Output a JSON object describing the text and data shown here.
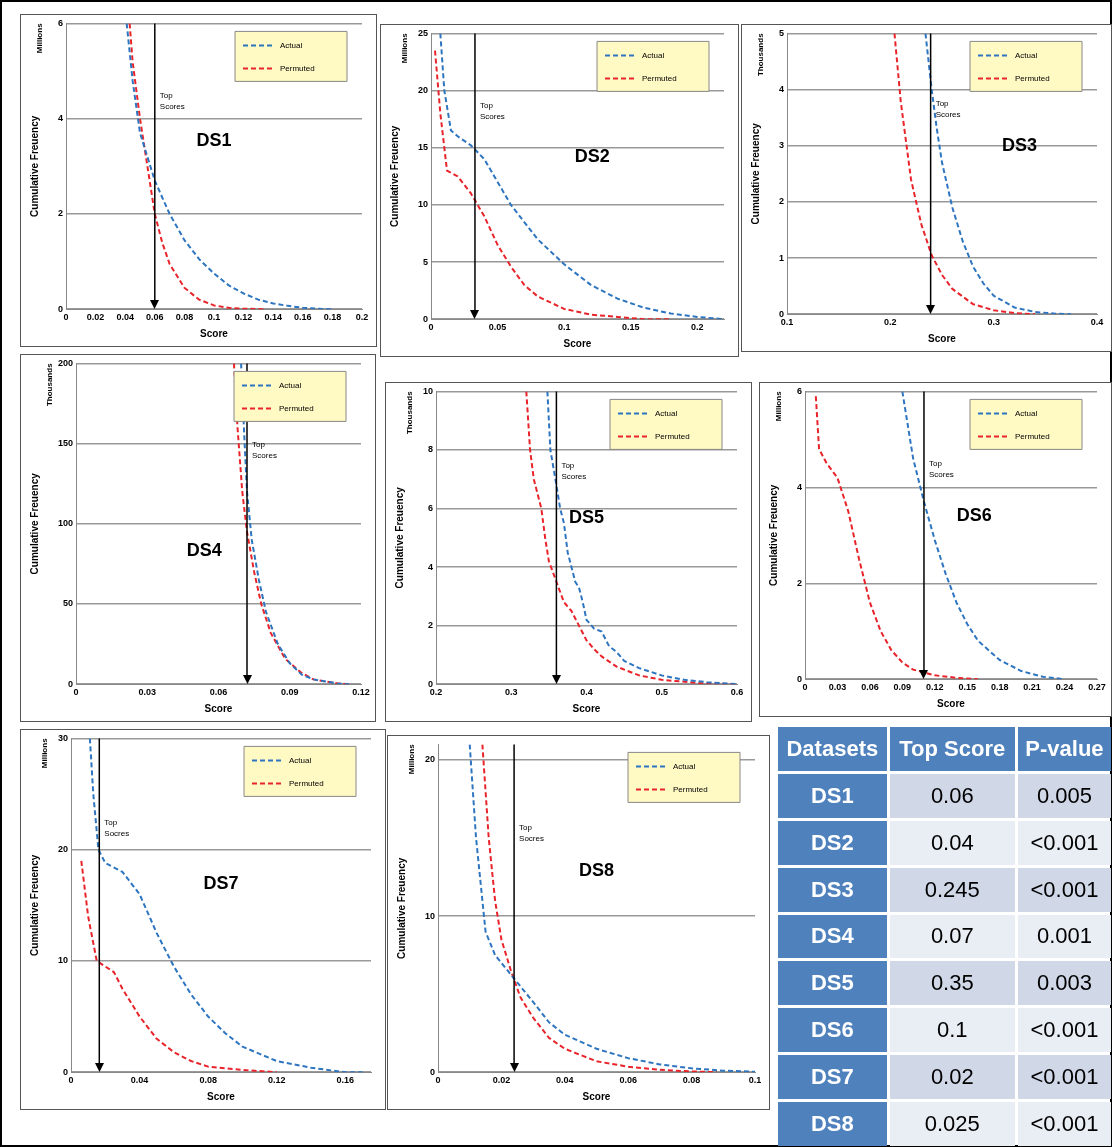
{
  "chart_data": [
    {
      "type": "line",
      "title": "DS1",
      "ylabel": "Cumulative Freuency",
      "xlabel": "Score",
      "annotations": [
        "Millions"
      ],
      "xlim": [
        0,
        0.2
      ],
      "xticks": [
        0,
        0.02,
        0.04,
        0.06,
        0.08,
        0.1,
        0.12,
        0.14,
        0.16,
        0.18,
        0.2
      ],
      "ylim": [
        0,
        6
      ],
      "yticks": [
        0,
        2,
        4,
        6
      ],
      "grid": "y",
      "legend": "top right",
      "line_style": "dashed",
      "marker": "none",
      "ref_lines": [
        {
          "axis": "x",
          "value": 0.06,
          "label": "Top Scores"
        }
      ],
      "series": [
        {
          "name": "Actual",
          "color": "#2e75c0",
          "x": [
            0.041,
            0.045,
            0.05,
            0.055,
            0.06,
            0.07,
            0.08,
            0.09,
            0.1,
            0.11,
            0.12,
            0.13,
            0.14,
            0.15,
            0.16,
            0.17,
            0.18
          ],
          "values": [
            6,
            4.8,
            3.7,
            3.2,
            2.7,
            2,
            1.45,
            1.05,
            0.75,
            0.5,
            0.33,
            0.2,
            0.12,
            0.07,
            0.03,
            0.01,
            0
          ]
        },
        {
          "name": "Permuted",
          "color": "#e8242a",
          "x": [
            0.043,
            0.045,
            0.05,
            0.055,
            0.06,
            0.065,
            0.07,
            0.08,
            0.09,
            0.1,
            0.11,
            0.12,
            0.135
          ],
          "values": [
            6,
            5.2,
            4,
            3,
            2,
            1.4,
            0.95,
            0.45,
            0.2,
            0.08,
            0.03,
            0.01,
            0
          ]
        }
      ]
    },
    {
      "type": "line",
      "title": "DS2",
      "ylabel": "Cumulative Freuency",
      "xlabel": "Score",
      "annotations": [
        "Millions"
      ],
      "xlim": [
        0,
        0.22
      ],
      "xticks": [
        0,
        0.05,
        0.1,
        0.15,
        0.2
      ],
      "ylim": [
        0,
        25
      ],
      "yticks": [
        0,
        5,
        10,
        15,
        20,
        25
      ],
      "grid": "y",
      "legend": "top right",
      "line_style": "dashed",
      "marker": "none",
      "ref_lines": [
        {
          "axis": "x",
          "value": 0.033,
          "label": "Top Scores"
        }
      ],
      "series": [
        {
          "name": "Actual",
          "color": "#2e75c0",
          "x": [
            0.007,
            0.01,
            0.015,
            0.02,
            0.03,
            0.04,
            0.05,
            0.06,
            0.08,
            0.1,
            0.12,
            0.14,
            0.16,
            0.18,
            0.2,
            0.22
          ],
          "values": [
            25,
            20,
            16.5,
            16,
            15.2,
            14,
            12,
            10,
            7,
            4.8,
            3,
            1.8,
            1,
            0.5,
            0.2,
            0
          ]
        },
        {
          "name": "Permuted",
          "color": "#e8242a",
          "x": [
            0.003,
            0.007,
            0.012,
            0.02,
            0.03,
            0.04,
            0.05,
            0.06,
            0.07,
            0.08,
            0.1,
            0.12,
            0.14,
            0.16,
            0.18
          ],
          "values": [
            23.5,
            18,
            13,
            12.5,
            11,
            9,
            6.5,
            4.6,
            3,
            2,
            0.9,
            0.4,
            0.2,
            0,
            0
          ]
        }
      ]
    },
    {
      "type": "line",
      "title": "DS3",
      "ylabel": "Cumulative Freuency",
      "xlabel": "Score",
      "annotations": [
        "Thousands"
      ],
      "xlim": [
        0.1,
        0.4
      ],
      "xticks": [
        0.1,
        0.2,
        0.3,
        0.4
      ],
      "ylim": [
        0,
        5
      ],
      "yticks": [
        0,
        1,
        2,
        3,
        4,
        5
      ],
      "grid": "y",
      "legend": "top right",
      "line_style": "dashed",
      "marker": "none",
      "ref_lines": [
        {
          "axis": "x",
          "value": 0.239,
          "label": "Top Scores"
        }
      ],
      "series": [
        {
          "name": "Actual",
          "color": "#2e75c0",
          "x": [
            0.234,
            0.24,
            0.245,
            0.25,
            0.26,
            0.27,
            0.28,
            0.29,
            0.3,
            0.32,
            0.34,
            0.36,
            0.375
          ],
          "values": [
            5,
            4,
            3.3,
            2.7,
            1.9,
            1.3,
            0.85,
            0.55,
            0.33,
            0.12,
            0.04,
            0.01,
            0
          ]
        },
        {
          "name": "Permuted",
          "color": "#e8242a",
          "x": [
            0.204,
            0.21,
            0.22,
            0.23,
            0.24,
            0.25,
            0.26,
            0.28,
            0.3,
            0.32,
            0.34
          ],
          "values": [
            5,
            3.8,
            2.4,
            1.6,
            1.05,
            0.7,
            0.45,
            0.18,
            0.07,
            0.02,
            0
          ]
        }
      ]
    },
    {
      "type": "line",
      "title": "DS4",
      "ylabel": "Cumulative Freuency",
      "xlabel": "Score",
      "annotations": [
        "Thousands"
      ],
      "xlim": [
        0,
        0.12
      ],
      "xticks": [
        0,
        0.03,
        0.06,
        0.09,
        0.12
      ],
      "ylim": [
        0,
        200
      ],
      "yticks": [
        0,
        50,
        100,
        150,
        200
      ],
      "grid": "y",
      "legend": "top right",
      "line_style": "dashed",
      "marker": "none",
      "ref_lines": [
        {
          "axis": "x",
          "value": 0.072,
          "label": "Top Scores"
        }
      ],
      "series": [
        {
          "name": "Actual",
          "color": "#2e75c0",
          "x": [
            0.0695,
            0.071,
            0.072,
            0.074,
            0.077,
            0.08,
            0.085,
            0.09,
            0.095,
            0.1,
            0.11,
            0.115
          ],
          "values": [
            200,
            150,
            120,
            90,
            65,
            45,
            25,
            13,
            6,
            3,
            0.5,
            0
          ]
        },
        {
          "name": "Permuted",
          "color": "#e8242a",
          "x": [
            0.0665,
            0.068,
            0.07,
            0.072,
            0.075,
            0.078,
            0.082,
            0.088,
            0.095,
            0.1,
            0.11,
            0.115
          ],
          "values": [
            200,
            160,
            120,
            95,
            70,
            50,
            32,
            16,
            7,
            3,
            0.5,
            0
          ]
        }
      ]
    },
    {
      "type": "line",
      "title": "DS5",
      "ylabel": "Cumulative Freuency",
      "xlabel": "Score",
      "annotations": [
        "Thousands"
      ],
      "xlim": [
        0.2,
        0.6
      ],
      "xticks": [
        0.2,
        0.3,
        0.4,
        0.5,
        0.6
      ],
      "ylim": [
        0,
        10
      ],
      "yticks": [
        0,
        2,
        4,
        6,
        8,
        10
      ],
      "grid": "y",
      "legend": "top right",
      "line_style": "dashed",
      "marker": "none",
      "ref_lines": [
        {
          "axis": "x",
          "value": 0.36,
          "label": "Top Scores"
        }
      ],
      "series": [
        {
          "name": "Actual",
          "color": "#2e75c0",
          "x": [
            0.348,
            0.352,
            0.36,
            0.365,
            0.37,
            0.375,
            0.38,
            0.385,
            0.39,
            0.395,
            0.4,
            0.41,
            0.42,
            0.43,
            0.44,
            0.45,
            0.47,
            0.5,
            0.53,
            0.56,
            0.6
          ],
          "values": [
            10,
            8,
            6.8,
            6,
            5.5,
            4.5,
            4,
            3.5,
            3.3,
            2.8,
            2.2,
            1.9,
            1.8,
            1.3,
            1.1,
            0.8,
            0.55,
            0.3,
            0.15,
            0.07,
            0
          ]
        },
        {
          "name": "Permuted",
          "color": "#e8242a",
          "x": [
            0.32,
            0.325,
            0.33,
            0.34,
            0.345,
            0.35,
            0.36,
            0.37,
            0.38,
            0.39,
            0.4,
            0.41,
            0.42,
            0.44,
            0.47,
            0.5,
            0.55,
            0.6
          ],
          "values": [
            10,
            8,
            7,
            6,
            5,
            4.2,
            3.5,
            2.8,
            2.5,
            2,
            1.5,
            1.2,
            0.95,
            0.6,
            0.3,
            0.15,
            0.04,
            0
          ]
        }
      ]
    },
    {
      "type": "line",
      "title": "DS6",
      "ylabel": "Cumulative Freuency",
      "xlabel": "Score",
      "annotations": [
        "Millions"
      ],
      "xlim": [
        0,
        0.27
      ],
      "xticks": [
        0,
        0.03,
        0.06,
        0.09,
        0.12,
        0.15,
        0.18,
        0.21,
        0.24,
        0.27
      ],
      "ylim": [
        0,
        6
      ],
      "yticks": [
        0,
        2,
        4,
        6
      ],
      "grid": "y",
      "legend": "top right",
      "line_style": "dashed",
      "marker": "none",
      "ref_lines": [
        {
          "axis": "x",
          "value": 0.11,
          "label": "Top Scores"
        }
      ],
      "series": [
        {
          "name": "Actual",
          "color": "#2e75c0",
          "x": [
            0.09,
            0.1,
            0.11,
            0.12,
            0.13,
            0.14,
            0.15,
            0.16,
            0.18,
            0.2,
            0.22,
            0.24
          ],
          "values": [
            6,
            4.6,
            3.7,
            2.9,
            2.2,
            1.6,
            1.15,
            0.8,
            0.4,
            0.17,
            0.05,
            0
          ]
        },
        {
          "name": "Permuted",
          "color": "#e8242a",
          "x": [
            0.01,
            0.013,
            0.02,
            0.03,
            0.04,
            0.05,
            0.06,
            0.07,
            0.08,
            0.09,
            0.1,
            0.12,
            0.14,
            0.16
          ],
          "values": [
            5.9,
            4.8,
            4.5,
            4.2,
            3.5,
            2.5,
            1.6,
            1,
            0.6,
            0.35,
            0.2,
            0.08,
            0.03,
            0
          ]
        }
      ]
    },
    {
      "type": "line",
      "title": "DS7",
      "ylabel": "Cumulative Freuency",
      "xlabel": "Score",
      "annotations": [
        "Millions"
      ],
      "xlim": [
        0,
        0.175
      ],
      "xticks": [
        0,
        0.04,
        0.08,
        0.12,
        0.16
      ],
      "ylim": [
        0,
        30
      ],
      "yticks": [
        0,
        10,
        20,
        30
      ],
      "grid": "y",
      "legend": "top right",
      "line_style": "dashed",
      "marker": "none",
      "ref_lines": [
        {
          "axis": "x",
          "value": 0.0165,
          "label": "Top Socres"
        }
      ],
      "series": [
        {
          "name": "Actual",
          "color": "#2e75c0",
          "x": [
            0.011,
            0.013,
            0.016,
            0.02,
            0.03,
            0.04,
            0.05,
            0.06,
            0.07,
            0.08,
            0.09,
            0.1,
            0.12,
            0.14,
            0.16,
            0.17
          ],
          "values": [
            30,
            25,
            20,
            18.8,
            18,
            16,
            12.5,
            9.5,
            7,
            5,
            3.5,
            2.3,
            1,
            0.4,
            0,
            0
          ]
        },
        {
          "name": "Permuted",
          "color": "#e8242a",
          "x": [
            0.006,
            0.01,
            0.015,
            0.02,
            0.025,
            0.03,
            0.04,
            0.05,
            0.06,
            0.07,
            0.08,
            0.1,
            0.12
          ],
          "values": [
            19,
            14,
            10,
            9.5,
            9,
            7.5,
            5,
            3,
            1.8,
            1,
            0.5,
            0.2,
            0
          ]
        }
      ]
    },
    {
      "type": "line",
      "title": "DS8",
      "ylabel": "Cumulative Freuency",
      "xlabel": "Score",
      "annotations": [
        "Millions"
      ],
      "xlim": [
        0,
        0.1
      ],
      "xticks": [
        0,
        0.02,
        0.04,
        0.06,
        0.08,
        0.1
      ],
      "ylim": [
        0,
        21
      ],
      "yticks": [
        0,
        10,
        20
      ],
      "grid": "y",
      "legend": "top right",
      "line_style": "dashed",
      "marker": "none",
      "ref_lines": [
        {
          "axis": "x",
          "value": 0.024,
          "label": "Top Socres"
        }
      ],
      "series": [
        {
          "name": "Actual",
          "color": "#2e75c0",
          "x": [
            0.01,
            0.012,
            0.015,
            0.018,
            0.022,
            0.026,
            0.03,
            0.035,
            0.04,
            0.05,
            0.06,
            0.07,
            0.08,
            0.09,
            0.1
          ],
          "values": [
            21,
            15,
            9,
            7.5,
            6.5,
            5.5,
            4.5,
            3.2,
            2.4,
            1.5,
            0.9,
            0.5,
            0.25,
            0.1,
            0.03
          ]
        },
        {
          "name": "Permuted",
          "color": "#e8242a",
          "x": [
            0.014,
            0.016,
            0.018,
            0.02,
            0.023,
            0.026,
            0.03,
            0.035,
            0.04,
            0.05,
            0.06,
            0.07,
            0.08,
            0.088
          ],
          "values": [
            21,
            15,
            11,
            8.5,
            6.5,
            4.8,
            3.5,
            2.2,
            1.5,
            0.7,
            0.35,
            0.15,
            0.05,
            0
          ]
        }
      ]
    },
    {
      "type": "other",
      "categories": [
        "Datasets",
        "Top Score",
        "P-value"
      ],
      "cell_labels": [
        [
          "DS1",
          "0.06",
          "0.005"
        ],
        [
          "DS2",
          "0.04",
          "<0.001"
        ],
        [
          "DS3",
          "0.245",
          "<0.001"
        ],
        [
          "DS4",
          "0.07",
          "0.001"
        ],
        [
          "DS5",
          "0.35",
          "0.003"
        ],
        [
          "DS6",
          "0.1",
          "<0.001"
        ],
        [
          "DS7",
          "0.02",
          "<0.001"
        ],
        [
          "DS8",
          "0.025",
          "<0.001"
        ]
      ]
    }
  ]
}
